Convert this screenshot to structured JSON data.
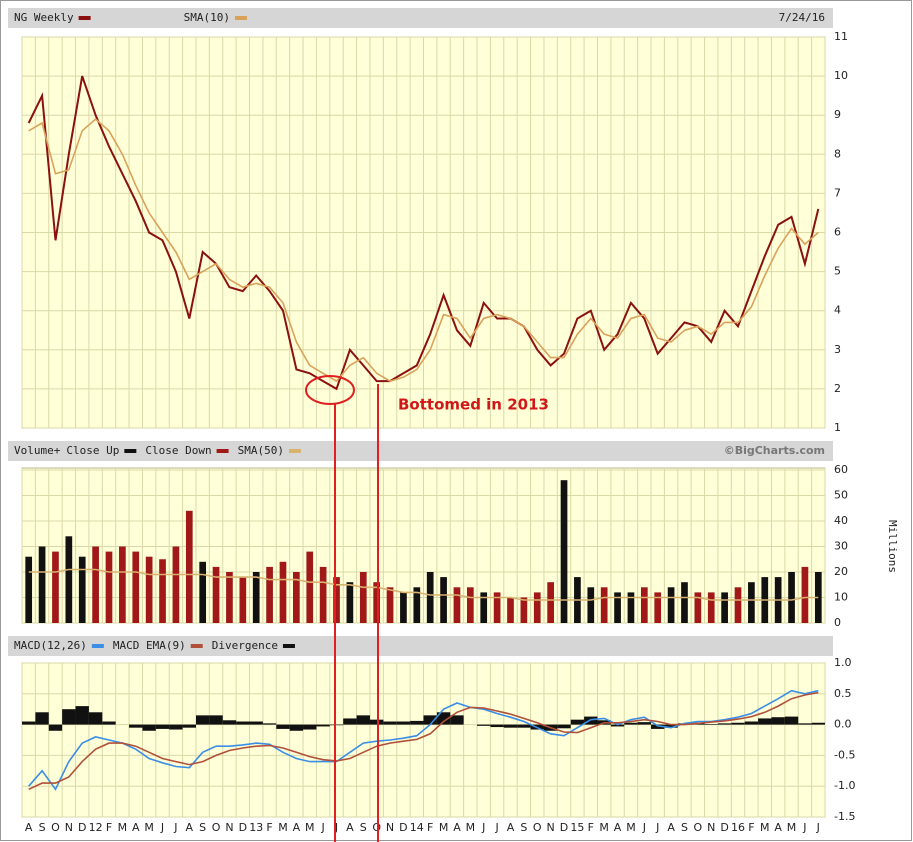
{
  "chart_data": [
    {
      "type": "line",
      "date": "7/24/16",
      "annotation": "Bottomed in 2013",
      "series": [
        {
          "name": "NG Weekly",
          "color": "#8b1010",
          "values": [
            8.8,
            9.5,
            5.8,
            8.0,
            10.0,
            9.0,
            8.2,
            7.5,
            6.8,
            6.0,
            5.8,
            5.0,
            3.8,
            5.5,
            5.2,
            4.6,
            4.5,
            4.9,
            4.5,
            4.0,
            2.5,
            2.4,
            2.2,
            2.0,
            3.0,
            2.6,
            2.2,
            2.2,
            2.4,
            2.6,
            3.4,
            4.4,
            3.5,
            3.1,
            4.2,
            3.8,
            3.8,
            3.6,
            3.0,
            2.6,
            2.9,
            3.8,
            4.0,
            3.0,
            3.4,
            4.2,
            3.8,
            2.9,
            3.3,
            3.7,
            3.6,
            3.2,
            4.0,
            3.6,
            4.5,
            5.4,
            6.2,
            6.4,
            5.2,
            6.6
          ]
        },
        {
          "name": "SMA(10)",
          "color": "#d9a25a",
          "values": [
            8.6,
            8.8,
            7.5,
            7.6,
            8.6,
            8.9,
            8.6,
            8.0,
            7.2,
            6.5,
            6.0,
            5.5,
            4.8,
            5.0,
            5.2,
            4.8,
            4.6,
            4.7,
            4.6,
            4.2,
            3.2,
            2.6,
            2.4,
            2.2,
            2.6,
            2.8,
            2.4,
            2.2,
            2.3,
            2.5,
            3.0,
            3.9,
            3.8,
            3.3,
            3.8,
            3.9,
            3.8,
            3.6,
            3.2,
            2.8,
            2.8,
            3.4,
            3.8,
            3.4,
            3.3,
            3.8,
            3.9,
            3.3,
            3.2,
            3.5,
            3.6,
            3.4,
            3.7,
            3.7,
            4.1,
            4.9,
            5.6,
            6.1,
            5.7,
            6.0
          ]
        }
      ],
      "ylim": [
        1,
        11
      ],
      "yticks": [
        1,
        2,
        3,
        4,
        5,
        6,
        7,
        8,
        9,
        10,
        11
      ],
      "grid": true
    },
    {
      "type": "bar",
      "title": "Volume+",
      "credit": "©BigCharts.com",
      "ylabel": "Millions",
      "series": [
        {
          "name": "Close Up",
          "color": "#111111",
          "values": [
            26,
            30,
            null,
            34,
            26,
            null,
            null,
            null,
            null,
            null,
            null,
            null,
            null,
            24,
            null,
            null,
            null,
            20,
            null,
            null,
            null,
            null,
            null,
            null,
            16,
            null,
            null,
            null,
            12,
            14,
            20,
            18,
            null,
            null,
            12,
            null,
            null,
            null,
            null,
            null,
            56,
            18,
            14,
            null,
            12,
            12,
            null,
            null,
            14,
            16,
            null,
            null,
            12,
            null,
            16,
            18,
            18,
            20,
            null,
            20
          ]
        },
        {
          "name": "Close Down",
          "color": "#a01818",
          "values": [
            null,
            null,
            28,
            null,
            null,
            30,
            28,
            30,
            28,
            26,
            25,
            30,
            44,
            null,
            22,
            20,
            18,
            null,
            22,
            24,
            20,
            28,
            22,
            18,
            null,
            20,
            16,
            14,
            null,
            null,
            null,
            null,
            14,
            14,
            null,
            12,
            10,
            10,
            12,
            16,
            null,
            null,
            null,
            14,
            null,
            null,
            14,
            12,
            null,
            null,
            12,
            12,
            null,
            14,
            null,
            null,
            null,
            null,
            22,
            null
          ]
        },
        {
          "name": "SMA(50)",
          "color": "#d9b270",
          "type": "line",
          "values": [
            20,
            20,
            20,
            21,
            21,
            21,
            20,
            20,
            20,
            19,
            19,
            19,
            19,
            19,
            18,
            18,
            18,
            18,
            17,
            17,
            17,
            16,
            16,
            15,
            15,
            14,
            14,
            13,
            12,
            12,
            11,
            11,
            11,
            10,
            10,
            10,
            10,
            9,
            9,
            9,
            9,
            9,
            9,
            10,
            10,
            10,
            10,
            10,
            10,
            10,
            10,
            9,
            9,
            9,
            9,
            9,
            9,
            9,
            10,
            10
          ]
        }
      ],
      "ylim": [
        0,
        60
      ],
      "yticks": [
        0,
        10,
        20,
        30,
        40,
        50,
        60
      ],
      "grid": true
    },
    {
      "type": "line",
      "categories": [
        "A",
        "S",
        "O",
        "N",
        "D",
        "12",
        "F",
        "M",
        "A",
        "M",
        "J",
        "J",
        "A",
        "S",
        "O",
        "N",
        "D",
        "13",
        "F",
        "M",
        "A",
        "M",
        "J",
        "J",
        "A",
        "S",
        "O",
        "N",
        "D",
        "14",
        "F",
        "M",
        "A",
        "M",
        "J",
        "J",
        "A",
        "S",
        "O",
        "N",
        "D",
        "15",
        "F",
        "M",
        "A",
        "M",
        "J",
        "J",
        "A",
        "S",
        "O",
        "N",
        "D",
        "16",
        "F",
        "M",
        "A",
        "M",
        "J",
        "J"
      ],
      "series": [
        {
          "name": "MACD(12,26)",
          "color": "#3a8ee6",
          "values": [
            -1.0,
            -0.75,
            -1.05,
            -0.6,
            -0.3,
            -0.2,
            -0.25,
            -0.3,
            -0.4,
            -0.55,
            -0.62,
            -0.68,
            -0.7,
            -0.45,
            -0.35,
            -0.35,
            -0.33,
            -0.3,
            -0.32,
            -0.45,
            -0.55,
            -0.6,
            -0.6,
            -0.6,
            -0.45,
            -0.3,
            -0.27,
            -0.25,
            -0.22,
            -0.18,
            0.0,
            0.25,
            0.35,
            0.28,
            0.25,
            0.18,
            0.12,
            0.05,
            -0.05,
            -0.15,
            -0.18,
            -0.05,
            0.08,
            0.1,
            0.0,
            0.08,
            0.12,
            -0.02,
            -0.05,
            0.02,
            0.05,
            0.05,
            0.08,
            0.12,
            0.18,
            0.3,
            0.42,
            0.55,
            0.5,
            0.55
          ]
        },
        {
          "name": "MACD EMA(9)",
          "color": "#b0503a",
          "values": [
            -1.05,
            -0.95,
            -0.95,
            -0.85,
            -0.6,
            -0.4,
            -0.3,
            -0.3,
            -0.35,
            -0.45,
            -0.55,
            -0.6,
            -0.65,
            -0.6,
            -0.5,
            -0.42,
            -0.38,
            -0.35,
            -0.34,
            -0.38,
            -0.45,
            -0.52,
            -0.57,
            -0.59,
            -0.55,
            -0.45,
            -0.35,
            -0.3,
            -0.27,
            -0.24,
            -0.15,
            0.05,
            0.2,
            0.28,
            0.27,
            0.22,
            0.17,
            0.1,
            0.03,
            -0.05,
            -0.12,
            -0.13,
            -0.05,
            0.03,
            0.03,
            0.05,
            0.08,
            0.05,
            0.0,
            0.0,
            0.02,
            0.04,
            0.06,
            0.09,
            0.13,
            0.2,
            0.3,
            0.42,
            0.48,
            0.52
          ]
        },
        {
          "name": "Divergence",
          "color": "#111111",
          "type": "bar",
          "values": [
            0.05,
            0.2,
            -0.1,
            0.25,
            0.3,
            0.2,
            0.05,
            0,
            -0.05,
            -0.1,
            -0.07,
            -0.08,
            -0.05,
            0.15,
            0.15,
            0.07,
            0.05,
            0.05,
            0.02,
            -0.07,
            -0.1,
            -0.08,
            -0.03,
            -0.01,
            0.1,
            0.15,
            0.08,
            0.05,
            0.05,
            0.06,
            0.15,
            0.2,
            0.15,
            0,
            -0.02,
            -0.04,
            -0.05,
            -0.05,
            -0.08,
            -0.1,
            -0.06,
            0.08,
            0.13,
            0.07,
            -0.03,
            0.03,
            0.04,
            -0.07,
            -0.05,
            0.02,
            0.03,
            0.01,
            0.02,
            0.03,
            0.05,
            0.1,
            0.12,
            0.13,
            0.02,
            0.03
          ]
        }
      ],
      "ylim": [
        -1.5,
        1
      ],
      "yticks": [
        {
          "value": 1,
          "label": "1.0"
        },
        0.5,
        {
          "value": 0,
          "label": "0.0"
        },
        -0.5,
        {
          "value": -1,
          "label": "-1.0"
        },
        -1.5
      ],
      "grid": true
    }
  ]
}
